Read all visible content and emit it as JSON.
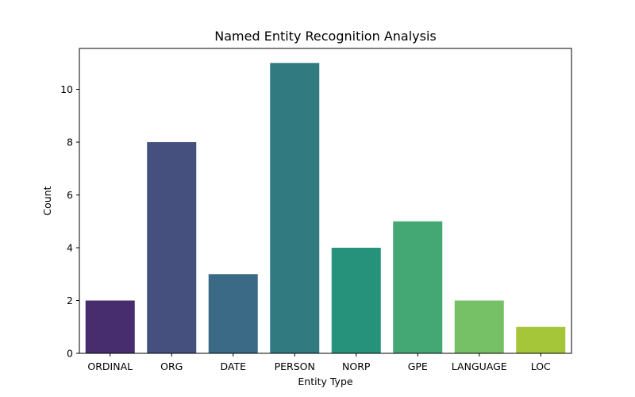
{
  "chart_data": {
    "type": "bar",
    "title": "Named Entity Recognition Analysis",
    "xlabel": "Entity Type",
    "ylabel": "Count",
    "categories": [
      "ORDINAL",
      "ORG",
      "DATE",
      "PERSON",
      "NORP",
      "GPE",
      "LANGUAGE",
      "LOC"
    ],
    "values": [
      2,
      8,
      3,
      11,
      4,
      5,
      2,
      1
    ],
    "colors": [
      "#482d6e",
      "#45507f",
      "#3a6a86",
      "#317a80",
      "#26927c",
      "#43a874",
      "#76c166",
      "#a6c63a"
    ],
    "yticks": [
      0,
      2,
      4,
      6,
      8,
      10
    ],
    "ylim": [
      0,
      11.55
    ],
    "grid": false,
    "legend": "none"
  }
}
